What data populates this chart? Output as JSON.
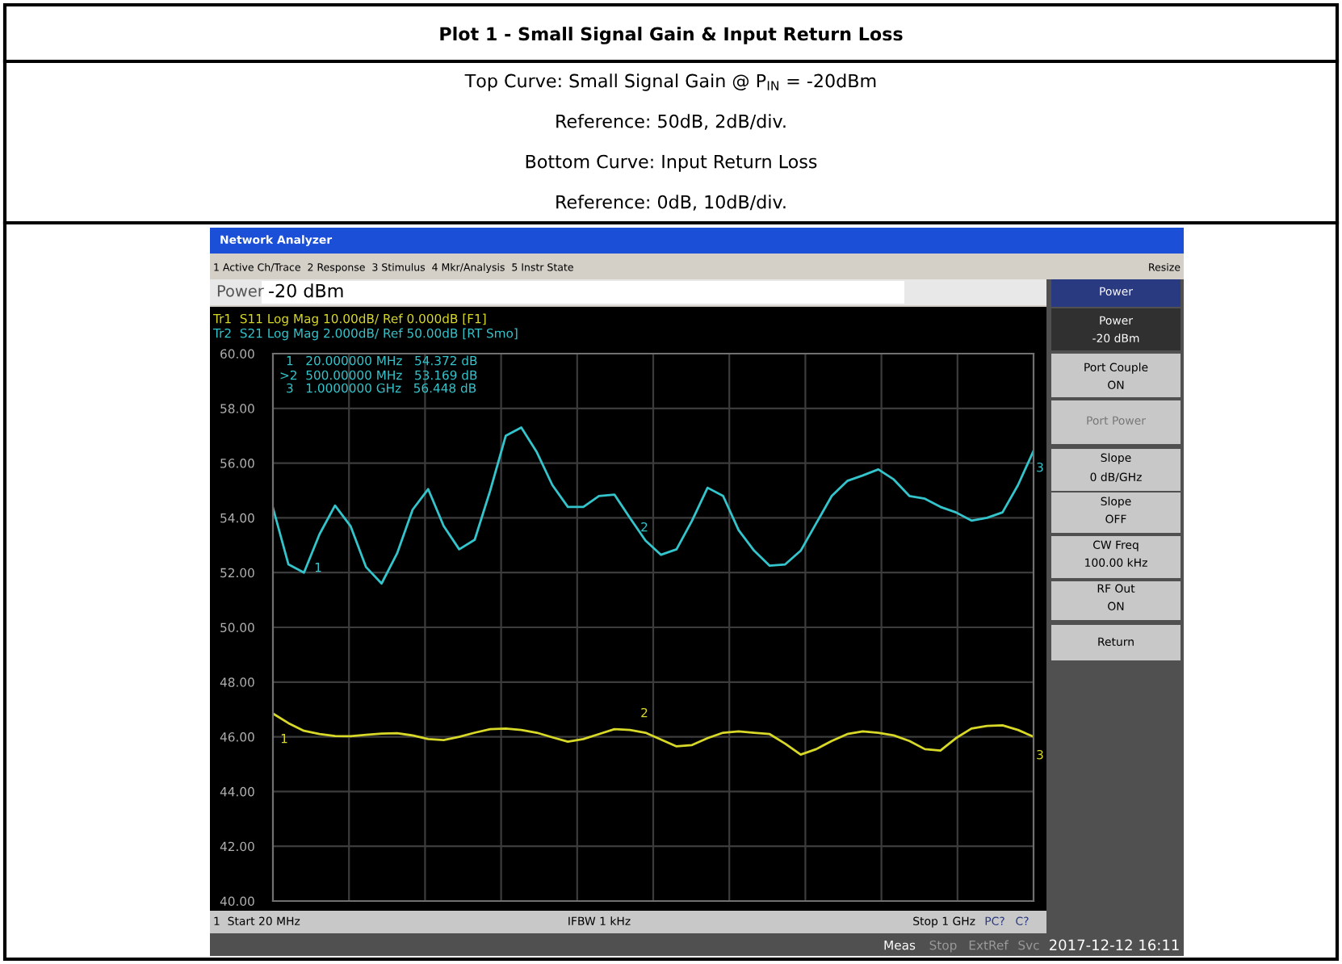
{
  "chart_data": {
    "type": "line",
    "title": "Plot 1 - Small Signal Gain & Input Return Loss",
    "subtitle": "Top Curve: Small Signal Gain @ P$_{IN}$ = -20dBm\nReference: 50dB, 2dB/div.\nBottom Curve: Input Return Loss\nReference: 0dB, 10dB/div.",
    "categories": [
      null,
      null,
      null,
      null,
      null,
      null,
      null,
      null,
      null,
      null,
      null,
      null,
      null,
      null,
      null,
      null,
      null,
      null,
      null,
      null,
      null,
      null,
      null,
      null,
      null,
      null,
      null,
      null,
      null,
      null,
      null,
      null,
      null,
      null,
      null,
      null,
      null,
      null,
      null,
      null,
      null,
      null,
      null,
      null,
      null,
      null,
      null,
      null,
      null,
      null
    ],
    "series": [
      {
        "color": "#33c4cc",
        "values": [
          54.37,
          52.3,
          52.0,
          53.4,
          54.45,
          53.7,
          52.2,
          51.6,
          52.7,
          54.3,
          55.05,
          53.7,
          52.85,
          53.2,
          55.0,
          57.0,
          57.3,
          56.4,
          55.2,
          54.4,
          54.4,
          54.8,
          54.85,
          54.0,
          53.17,
          52.65,
          52.85,
          53.9,
          55.1,
          54.8,
          53.55,
          52.8,
          52.25,
          52.3,
          52.8,
          53.8,
          54.8,
          55.35,
          55.55,
          55.77,
          55.4,
          54.8,
          54.7,
          54.4,
          54.2,
          53.9,
          54.0,
          54.2,
          55.2,
          56.45
        ]
      },
      {
        "color": "#d8d828",
        "values": [
          46.85,
          46.5,
          46.22,
          46.1,
          46.03,
          46.02,
          46.07,
          46.12,
          46.13,
          46.05,
          45.92,
          45.88,
          46.0,
          46.15,
          46.28,
          46.3,
          46.25,
          46.15,
          45.98,
          45.82,
          45.92,
          46.1,
          46.28,
          46.25,
          46.15,
          45.9,
          45.65,
          45.7,
          45.95,
          46.15,
          46.2,
          46.15,
          46.1,
          45.75,
          45.35,
          45.55,
          45.85,
          46.1,
          46.2,
          46.15,
          46.05,
          45.85,
          45.55,
          45.5,
          45.95,
          46.3,
          46.4,
          46.42,
          46.25,
          46.0
        ]
      }
    ],
    "ylim": [
      40,
      60
    ],
    "yticks": [
      {
        "value": 40,
        "label": "40.00"
      },
      {
        "value": 42,
        "label": "42.00"
      },
      {
        "value": 44,
        "label": "44.00"
      },
      {
        "value": 46,
        "label": "46.00"
      },
      {
        "value": 48,
        "label": "48.00"
      },
      {
        "value": 50,
        "label": "50.00"
      },
      {
        "value": 52,
        "label": "52.00"
      },
      {
        "value": 54,
        "label": "54.00"
      },
      {
        "value": 56,
        "label": "56.00"
      },
      {
        "value": 58,
        "label": "58.00"
      },
      {
        "value": 60,
        "label": "60.00"
      }
    ],
    "tick_labels": "y",
    "grid": true,
    "annotations": [
      "Network Analyzer",
      "1 Active Ch/Trace  2 Response  3 Stimulus  4 Mkr/Analysis  5 Instr State",
      "Resize",
      "Power",
      "-20 dBm",
      "Tr1  S11 Log Mag 10.00dB/ Ref 0.000dB [F1]",
      "Tr2  S21 Log Mag 2.000dB/ Ref 50.00dB [RT Smo]",
      "1   20.000000 MHz   54.372 dB",
      ">2  500.00000 MHz   53.169 dB",
      "3   1.0000000 GHz   56.448 dB",
      "1  Start 20 MHz",
      "IFBW 1 kHz",
      "Stop 1 GHz",
      "PC?",
      "C?",
      "Power",
      "Power",
      "-20 dBm",
      "Port Couple",
      "ON",
      "Port Power",
      "Slope",
      "0 dB/GHz",
      "Slope",
      "OFF",
      "CW Freq",
      "100.00 kHz",
      "RF Out",
      "ON",
      "Return",
      "Meas",
      "Stop",
      "ExtRef",
      "Svc",
      "2017-12-12 16:11",
      "1",
      "2",
      "3",
      "1",
      "2",
      "3"
    ]
  }
}
